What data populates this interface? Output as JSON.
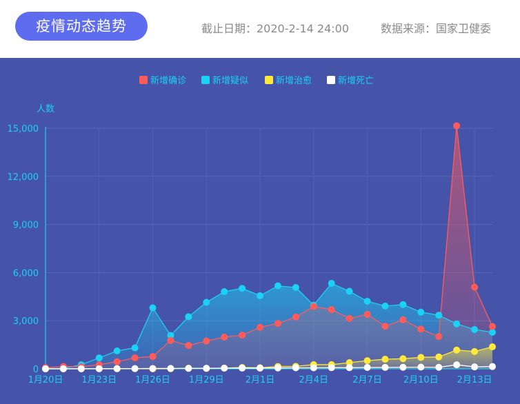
{
  "header": {
    "title": "疫情动态趋势",
    "cutoff": "截止日期：2020-2-14 24:00",
    "source": "数据来源：国家卫健委"
  },
  "chart_data": {
    "type": "line",
    "yname": "人数",
    "ylim": [
      0,
      15000
    ],
    "yticks": [
      "0",
      "3,000",
      "6,000",
      "9,000",
      "12,000",
      "15,000"
    ],
    "ytick_values": [
      0,
      3000,
      6000,
      9000,
      12000,
      15000
    ],
    "grid": true,
    "legend_position": "top-center",
    "categories": [
      "1月20日",
      "1月21日",
      "1月22日",
      "1月23日",
      "1月24日",
      "1月25日",
      "1月26日",
      "1月27日",
      "1月28日",
      "1月29日",
      "1月30日",
      "1月31日",
      "2月1日",
      "2月2日",
      "2月3日",
      "2月4日",
      "2月5日",
      "2月6日",
      "2月7日",
      "2月8日",
      "2月9日",
      "2月10日",
      "2月11日",
      "2月12日",
      "2月13日",
      "2月14日"
    ],
    "x_tick_labels": [
      "1月20日",
      "",
      "",
      "1月23日",
      "",
      "",
      "1月26日",
      "",
      "",
      "1月29日",
      "",
      "",
      "2月1日",
      "",
      "",
      "2月4日",
      "",
      "",
      "2月7日",
      "",
      "",
      "2月10日",
      "",
      "",
      "2月13日",
      ""
    ],
    "series": [
      {
        "name": "新增确诊",
        "color": "#ff5b5b",
        "values": [
          77,
          149,
          131,
          259,
          444,
          688,
          769,
          1771,
          1459,
          1737,
          1982,
          2102,
          2590,
          2829,
          3235,
          3887,
          3694,
          3143,
          3399,
          2656,
          3062,
          2478,
          2015,
          15152,
          5090,
          2641
        ]
      },
      {
        "name": "新增疑似",
        "color": "#1bd1f5",
        "values": [
          27,
          26,
          257,
          680,
          1118,
          1309,
          3806,
          2077,
          3248,
          4148,
          4812,
          5019,
          4562,
          5173,
          5072,
          3971,
          5328,
          4833,
          4214,
          3916,
          4008,
          3536,
          3342,
          2807,
          2450,
          2277
        ]
      },
      {
        "name": "新增治愈",
        "color": "#ffe93a",
        "values": [
          0,
          0,
          0,
          6,
          3,
          11,
          2,
          9,
          43,
          21,
          47,
          85,
          68,
          147,
          157,
          262,
          261,
          387,
          510,
          600,
          632,
          716,
          744,
          1171,
          1081,
          1373
        ]
      },
      {
        "name": "新增死亡",
        "color": "#ffffff",
        "values": [
          0,
          3,
          8,
          8,
          16,
          15,
          24,
          26,
          26,
          38,
          43,
          46,
          45,
          57,
          64,
          65,
          73,
          73,
          86,
          89,
          97,
          108,
          97,
          254,
          121,
          143
        ]
      }
    ]
  }
}
